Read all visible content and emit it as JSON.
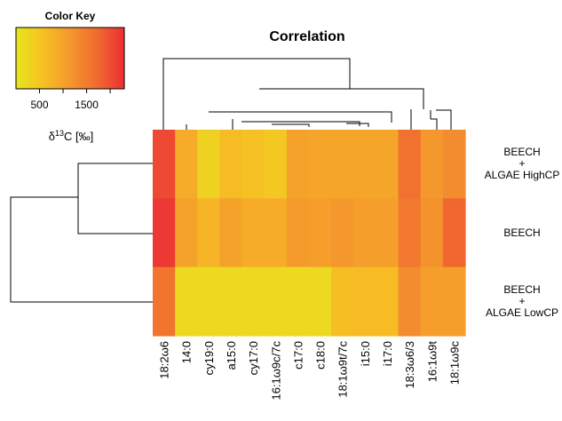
{
  "chart_data": {
    "type": "heatmap",
    "title": "Correlation",
    "rows": [
      {
        "lines": [
          "BEECH",
          "+",
          "ALGAE HighCP"
        ]
      },
      {
        "lines": [
          "BEECH"
        ]
      },
      {
        "lines": [
          "BEECH",
          "+",
          "ALGAE LowCP"
        ]
      }
    ],
    "columns": [
      "18:2ω6",
      "14:0",
      "cy19:0",
      "a15:0",
      "cy17:0",
      "16:1ω9c/7c",
      "c17:0",
      "c18:0",
      "18:1ω9t/7c",
      "i15:0",
      "i17:0",
      "18:3ω6/3",
      "16:1ω9t",
      "18:1ω9c"
    ],
    "values": [
      [
        2050,
        850,
        300,
        650,
        550,
        450,
        1000,
        950,
        950,
        950,
        950,
        1650,
        1150,
        1300
      ],
      [
        2200,
        1000,
        750,
        1000,
        850,
        850,
        1100,
        1050,
        1150,
        1050,
        1050,
        1550,
        1200,
        1750
      ],
      [
        1600,
        200,
        200,
        200,
        200,
        200,
        200,
        200,
        600,
        650,
        650,
        1300,
        1050,
        1050
      ]
    ],
    "color_key": {
      "title": "Color Key",
      "ticks": [
        "500",
        "1500"
      ],
      "tick_values": [
        500,
        1500
      ],
      "range": [
        0,
        2300
      ],
      "label": "δ¹³C [‰]",
      "colors": [
        "#e6e61e",
        "#f7c023",
        "#f4972d",
        "#f06b2f",
        "#ec2e34"
      ]
    },
    "column_dendrogram": true,
    "row_dendrogram": true
  }
}
